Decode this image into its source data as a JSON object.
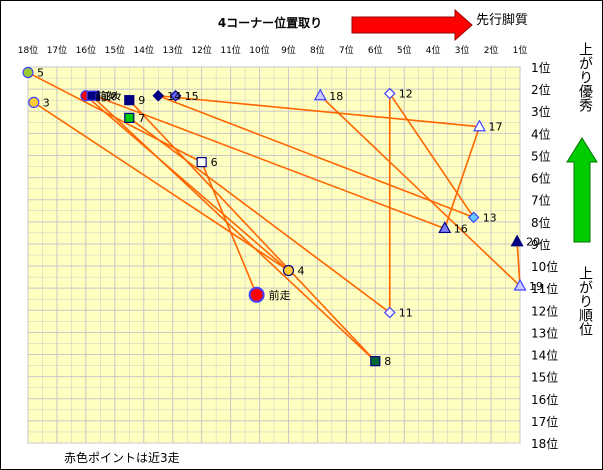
{
  "chart_data": {
    "type": "scatter",
    "title": "4コーナー位置取り",
    "arrow_left_label": "先行脚質",
    "right_label_top": "上がり優秀",
    "right_label_bottom": "上がり順位",
    "footer_note": "赤色ポイントは近3走",
    "x_ticks": [
      "18位",
      "17位",
      "16位",
      "15位",
      "14位",
      "13位",
      "12位",
      "11位",
      "10位",
      "9位",
      "8位",
      "7位",
      "6位",
      "5位",
      "4位",
      "3位",
      "2位",
      "1位"
    ],
    "y_ticks": [
      "1位",
      "2位",
      "3位",
      "4位",
      "5位",
      "6位",
      "7位",
      "8位",
      "9位",
      "10位",
      "11位",
      "12位",
      "13位",
      "14位",
      "15位",
      "16位",
      "17位",
      "18位"
    ],
    "xlim": [
      18,
      1
    ],
    "ylim": [
      1,
      18
    ],
    "grid": true,
    "colors": {
      "plot_bg": "#ffffc0",
      "grid": "#c8c8c8",
      "line": "#ff6600",
      "red_arrow": "#ff0000",
      "green_arrow": "#00cc00",
      "recent_marker": "#ff0000",
      "prev_marker": "#4040ff"
    },
    "points": [
      {
        "label": "前走",
        "x": 10.1,
        "y": 11.3,
        "shape": "circle",
        "fill": "#ff0000",
        "stroke": "#4040ff",
        "big": true
      },
      {
        "label": "3",
        "x": 17.8,
        "y": 2.6,
        "shape": "circle",
        "fill": "#ffcc33",
        "stroke": "#4040ff"
      },
      {
        "label": "4",
        "x": 9.0,
        "y": 10.2,
        "shape": "circle",
        "fill": "#ffcc33",
        "stroke": "#000080"
      },
      {
        "label": "5",
        "x": 18.0,
        "y": 1.25,
        "shape": "circle",
        "fill": "#99cc33",
        "stroke": "#4040ff"
      },
      {
        "label": "6",
        "x": 12.0,
        "y": 5.3,
        "shape": "square",
        "fill": "#ffffff",
        "stroke": "#000080"
      },
      {
        "label": "7",
        "x": 14.5,
        "y": 3.3,
        "shape": "square",
        "fill": "#00cc00",
        "stroke": "#000080"
      },
      {
        "label": "8",
        "x": 6.0,
        "y": 14.3,
        "shape": "square",
        "fill": "#006633",
        "stroke": "#000080"
      },
      {
        "label": "9",
        "x": 14.5,
        "y": 2.5,
        "shape": "square",
        "fill": "#000080",
        "stroke": "#000080"
      },
      {
        "label": "10",
        "x": 15.7,
        "y": 2.3,
        "shape": "square",
        "fill": "#000080",
        "stroke": "#000080"
      },
      {
        "label": "11",
        "x": 5.5,
        "y": 12.1,
        "shape": "diamond",
        "fill": "#ffffff",
        "stroke": "#4040ff"
      },
      {
        "label": "12",
        "x": 5.5,
        "y": 2.2,
        "shape": "diamond",
        "fill": "#ffffff",
        "stroke": "#4040ff"
      },
      {
        "label": "13",
        "x": 2.6,
        "y": 7.8,
        "shape": "diamond",
        "fill": "#66ccff",
        "stroke": "#4040ff"
      },
      {
        "label": "14",
        "x": 13.5,
        "y": 2.3,
        "shape": "diamond",
        "fill": "#000080",
        "stroke": "#000080"
      },
      {
        "label": "15",
        "x": 12.9,
        "y": 2.3,
        "shape": "diamond",
        "fill": "#6666ff",
        "stroke": "#000080"
      },
      {
        "label": "16",
        "x": 3.6,
        "y": 8.3,
        "shape": "triangle",
        "fill": "#8080ff",
        "stroke": "#000080"
      },
      {
        "label": "17",
        "x": 2.4,
        "y": 3.7,
        "shape": "triangle",
        "fill": "#ffffff",
        "stroke": "#4040ff"
      },
      {
        "label": "18",
        "x": 7.9,
        "y": 2.3,
        "shape": "triangle",
        "fill": "#ccccff",
        "stroke": "#4040ff"
      },
      {
        "label": "19",
        "x": 1.0,
        "y": 10.9,
        "shape": "triangle",
        "fill": "#ccccff",
        "stroke": "#4040ff"
      },
      {
        "label": "20",
        "x": 1.1,
        "y": 8.9,
        "shape": "triangle",
        "fill": "#000080",
        "stroke": "#000080"
      },
      {
        "label": "前々",
        "x": 16.0,
        "y": 2.3,
        "shape": "circle",
        "fill": "#ff0000",
        "stroke": "#4040ff"
      },
      {
        "label": "前々",
        "x": 15.8,
        "y": 2.3,
        "shape": "square",
        "fill": "#000080",
        "stroke": "#4040ff"
      }
    ],
    "segments": [
      [
        17.8,
        2.6,
        9.0,
        10.2
      ],
      [
        18.0,
        1.25,
        12.0,
        5.3
      ],
      [
        12.0,
        5.3,
        10.1,
        11.3
      ],
      [
        16.0,
        2.3,
        9.0,
        10.2
      ],
      [
        15.8,
        2.3,
        6.0,
        14.3
      ],
      [
        14.5,
        2.5,
        6.0,
        14.3
      ],
      [
        14.5,
        3.3,
        5.5,
        12.1
      ],
      [
        15.7,
        2.3,
        3.6,
        8.3
      ],
      [
        13.5,
        2.3,
        2.6,
        7.8
      ],
      [
        7.9,
        2.3,
        1.0,
        10.9
      ],
      [
        5.5,
        2.2,
        5.5,
        12.1
      ],
      [
        5.5,
        2.2,
        2.6,
        7.8
      ],
      [
        3.6,
        8.3,
        2.4,
        3.7
      ],
      [
        2.4,
        3.7,
        13.5,
        2.3
      ],
      [
        1.1,
        8.9,
        1.0,
        10.9
      ]
    ]
  }
}
